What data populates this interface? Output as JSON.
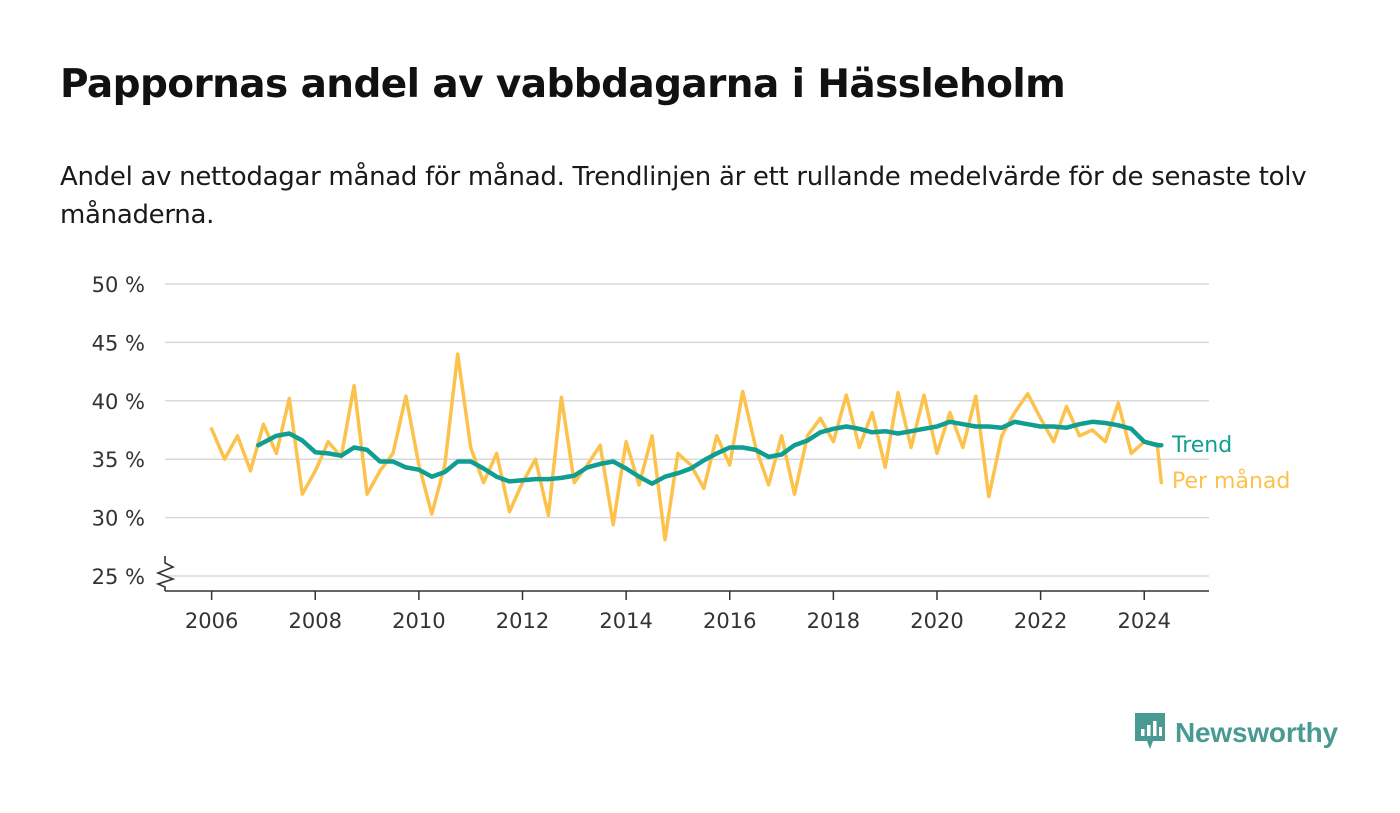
{
  "title": "Pappornas andel av vabbdagarna i Hässleholm",
  "subtitle": "Andel av nettodagar månad för månad. Trendlinjen är ett rullande medelvärde för de senaste tolv månaderna.",
  "logo": {
    "text": "Newsworthy",
    "icon": "newsworthy-chart-icon",
    "color": "#4a9a94"
  },
  "chart_data": {
    "type": "line",
    "title": "Pappornas andel av vabbdagarna i Hässleholm",
    "y_ticks": [
      "25 %",
      "30 %",
      "35 %",
      "40 %",
      "45 %",
      "50 %"
    ],
    "x_ticks": [
      "2006",
      "2008",
      "2010",
      "2012",
      "2014",
      "2016",
      "2018",
      "2020",
      "2022",
      "2024"
    ],
    "ylim": [
      25,
      50
    ],
    "xlim": [
      2005.1,
      2025.25
    ],
    "y_axis_break": true,
    "grid": true,
    "legend_placement": "right end of lines",
    "series": [
      {
        "name": "Per månad",
        "color": "#fcc24c",
        "x": [
          2006.0,
          2006.25,
          2006.5,
          2006.75,
          2007.0,
          2007.25,
          2007.5,
          2007.75,
          2008.0,
          2008.25,
          2008.5,
          2008.75,
          2009.0,
          2009.25,
          2009.5,
          2009.75,
          2010.0,
          2010.25,
          2010.5,
          2010.75,
          2011.0,
          2011.25,
          2011.5,
          2011.75,
          2012.0,
          2012.25,
          2012.5,
          2012.75,
          2013.0,
          2013.25,
          2013.5,
          2013.75,
          2014.0,
          2014.25,
          2014.5,
          2014.75,
          2015.0,
          2015.25,
          2015.5,
          2015.75,
          2016.0,
          2016.25,
          2016.5,
          2016.75,
          2017.0,
          2017.25,
          2017.5,
          2017.75,
          2018.0,
          2018.25,
          2018.5,
          2018.75,
          2019.0,
          2019.25,
          2019.5,
          2019.75,
          2020.0,
          2020.25,
          2020.5,
          2020.75,
          2021.0,
          2021.25,
          2021.5,
          2021.75,
          2022.0,
          2022.25,
          2022.5,
          2022.75,
          2023.0,
          2023.25,
          2023.5,
          2023.75,
          2024.0,
          2024.25,
          2024.33
        ],
        "values": [
          37.6,
          35.0,
          37.0,
          34.0,
          38.0,
          35.5,
          40.2,
          32.0,
          34.0,
          36.5,
          35.2,
          41.3,
          32.0,
          34.0,
          35.5,
          40.4,
          34.5,
          30.3,
          34.5,
          44.0,
          36.0,
          33.0,
          35.5,
          30.5,
          33.0,
          35.0,
          30.2,
          40.3,
          33.0,
          34.5,
          36.2,
          29.4,
          36.5,
          32.8,
          37.0,
          28.1,
          35.5,
          34.5,
          32.5,
          37.0,
          34.5,
          40.8,
          36.0,
          32.8,
          37.0,
          32.0,
          37.0,
          38.5,
          36.5,
          40.5,
          36.0,
          39.0,
          34.3,
          40.7,
          36.0,
          40.5,
          35.5,
          39.0,
          36.0,
          40.4,
          31.8,
          37.0,
          39.0,
          40.6,
          38.5,
          36.5,
          39.5,
          37.0,
          37.5,
          36.5,
          39.8,
          35.5,
          36.5,
          36.3,
          33.0
        ]
      },
      {
        "name": "Trend",
        "color": "#109e93",
        "x": [
          2006.9,
          2007.25,
          2007.5,
          2007.75,
          2008.0,
          2008.25,
          2008.5,
          2008.75,
          2009.0,
          2009.25,
          2009.5,
          2009.75,
          2010.0,
          2010.25,
          2010.5,
          2010.75,
          2011.0,
          2011.25,
          2011.5,
          2011.75,
          2012.0,
          2012.25,
          2012.5,
          2012.75,
          2013.0,
          2013.25,
          2013.5,
          2013.75,
          2014.0,
          2014.25,
          2014.5,
          2014.75,
          2015.0,
          2015.25,
          2015.5,
          2015.75,
          2016.0,
          2016.25,
          2016.5,
          2016.75,
          2017.0,
          2017.25,
          2017.5,
          2017.75,
          2018.0,
          2018.25,
          2018.5,
          2018.75,
          2019.0,
          2019.25,
          2019.5,
          2019.75,
          2020.0,
          2020.25,
          2020.5,
          2020.75,
          2021.0,
          2021.25,
          2021.5,
          2021.75,
          2022.0,
          2022.25,
          2022.5,
          2022.75,
          2023.0,
          2023.25,
          2023.5,
          2023.75,
          2024.0,
          2024.25,
          2024.33
        ],
        "values": [
          36.2,
          37.0,
          37.2,
          36.6,
          35.6,
          35.5,
          35.3,
          36.0,
          35.8,
          34.8,
          34.8,
          34.3,
          34.1,
          33.5,
          33.9,
          34.8,
          34.8,
          34.2,
          33.5,
          33.1,
          33.2,
          33.3,
          33.3,
          33.4,
          33.6,
          34.3,
          34.6,
          34.8,
          34.2,
          33.5,
          32.9,
          33.5,
          33.8,
          34.2,
          34.9,
          35.5,
          36.0,
          36.0,
          35.8,
          35.2,
          35.4,
          36.2,
          36.6,
          37.3,
          37.6,
          37.8,
          37.6,
          37.3,
          37.4,
          37.2,
          37.4,
          37.6,
          37.8,
          38.2,
          38.0,
          37.8,
          37.8,
          37.7,
          38.2,
          38.0,
          37.8,
          37.8,
          37.7,
          38.0,
          38.2,
          38.1,
          37.9,
          37.6,
          36.5,
          36.2,
          36.2
        ]
      }
    ]
  }
}
